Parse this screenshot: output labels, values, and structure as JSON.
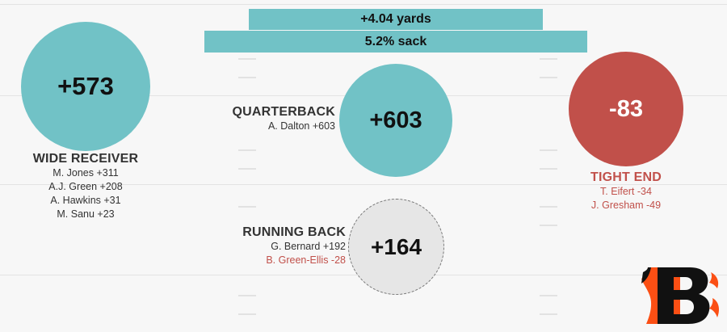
{
  "banner": {
    "yards": "+4.04 yards",
    "sack": "5.2% sack"
  },
  "wide_receiver": {
    "value": "+573",
    "title": "WIDE RECEIVER",
    "players": [
      "M. Jones +311",
      "A.J. Green +208",
      "A. Hawkins +31",
      "M. Sanu +23"
    ]
  },
  "quarterback": {
    "value": "+603",
    "title": "QUARTERBACK",
    "players": [
      "A. Dalton +603"
    ]
  },
  "running_back": {
    "value": "+164",
    "title": "RUNNING BACK",
    "players": [
      "G. Bernard +192",
      "B. Green-Ellis -28"
    ]
  },
  "tight_end": {
    "value": "-83",
    "title": "TIGHT END",
    "players": [
      "T. Eifert -34",
      "J. Gresham -49"
    ]
  },
  "colors": {
    "positive": "#71c2c6",
    "negative": "#c1504a",
    "neutral": "#e6e6e6",
    "logo_orange": "#fb4f14",
    "logo_black": "#111111"
  },
  "logo": {
    "icon": "bengals-b-logo-icon"
  }
}
